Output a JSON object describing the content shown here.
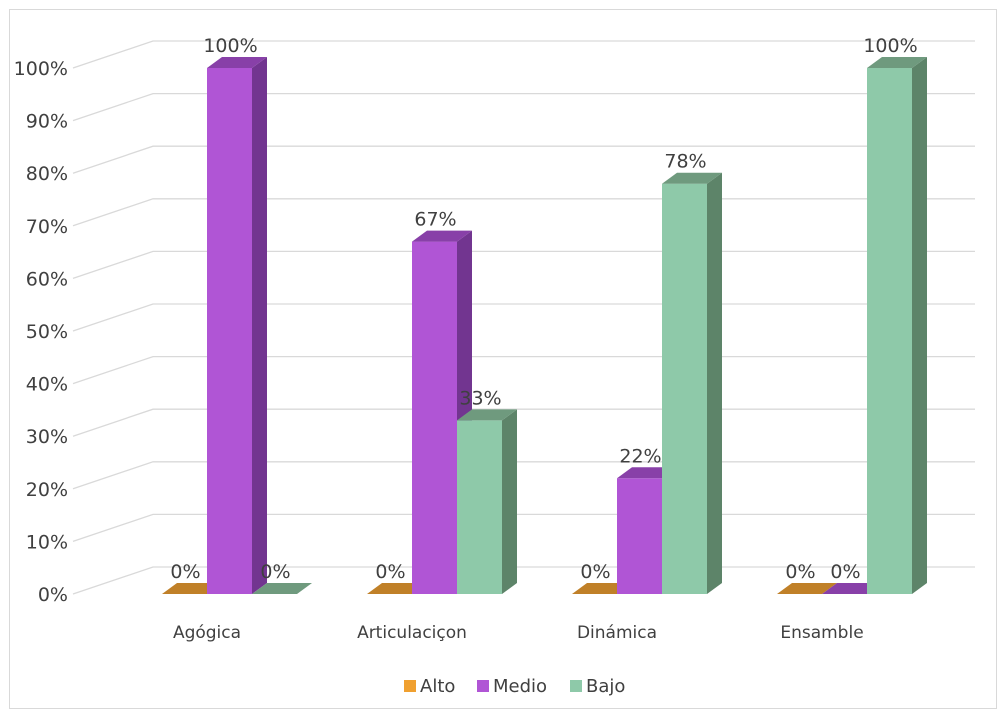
{
  "chart_data": {
    "type": "bar",
    "categories": [
      "Agógica",
      "Articulaciçon",
      "Dinámica",
      "Ensamble"
    ],
    "series": [
      {
        "name": "Alto",
        "values": [
          0,
          0,
          0,
          0
        ],
        "data_labels": [
          "0%",
          "0%",
          "0%",
          "0%"
        ],
        "color": "#f0a030",
        "side_color": "#c07820",
        "top_color": "#c08028"
      },
      {
        "name": "Medio",
        "values": [
          100,
          67,
          22,
          0
        ],
        "data_labels": [
          "100%",
          "67%",
          "22%",
          "0%"
        ],
        "color": "#b055d5",
        "side_color": "#723590",
        "top_color": "#8840a8"
      },
      {
        "name": "Bajo",
        "values": [
          0,
          33,
          78,
          100
        ],
        "data_labels": [
          "0%",
          "33%",
          "78%",
          "100%"
        ],
        "color": "#8ec9a9",
        "side_color": "#5d8469",
        "top_color": "#6f9a7e"
      }
    ],
    "y_ticks": [
      "0%",
      "10%",
      "20%",
      "30%",
      "40%",
      "50%",
      "60%",
      "70%",
      "80%",
      "90%",
      "100%"
    ],
    "ylim": [
      0,
      100
    ],
    "grid": true,
    "legend_position": "bottom",
    "gridline_color": "#d9d9d9"
  }
}
